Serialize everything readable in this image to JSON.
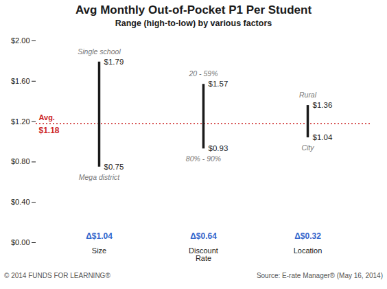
{
  "chart_data": {
    "type": "range",
    "title": "Avg Monthly Out-of-Pocket P1 Per Student",
    "subtitle": "Range (high-to-low) by various factors",
    "categories": [
      "Size",
      "Discount\nRate",
      "Location"
    ],
    "high": [
      1.79,
      1.57,
      1.36
    ],
    "low": [
      0.75,
      0.93,
      1.04
    ],
    "high_labels": [
      "$1.79",
      "$1.57",
      "$1.36"
    ],
    "low_labels": [
      "$0.75",
      "$0.93",
      "$1.04"
    ],
    "data_labels": true,
    "color": "#1a1a1a",
    "avg_line": {
      "value": 1.18,
      "labels": [
        "Avg.",
        "$1.18"
      ],
      "color": "#cc2222"
    },
    "top_annotations": [
      "Single school",
      "20 - 59%",
      "Rural"
    ],
    "bottom_annotations": [
      "Mega district",
      "80% - 90%",
      "City"
    ],
    "delta_labels": {
      "labels": [
        "Δ$1.04",
        "Δ$0.64",
        "Δ$0.32"
      ],
      "color": "#3366cc"
    },
    "ylim": [
      0.0,
      2.0
    ],
    "yticks": [
      {
        "value": 0.0,
        "label": "$0.00"
      },
      {
        "value": 0.4,
        "label": "$0.40"
      },
      {
        "value": 0.8,
        "label": "$0.80"
      },
      {
        "value": 1.2,
        "label": "$1.20"
      },
      {
        "value": 1.6,
        "label": "$1.60"
      },
      {
        "value": 2.0,
        "label": "$2.00"
      }
    ],
    "grid": false,
    "footer_left": "© 2014 FUNDS FOR LEARNING®",
    "footer_right": "Source: E-rate Manager® (May 16, 2014)"
  }
}
